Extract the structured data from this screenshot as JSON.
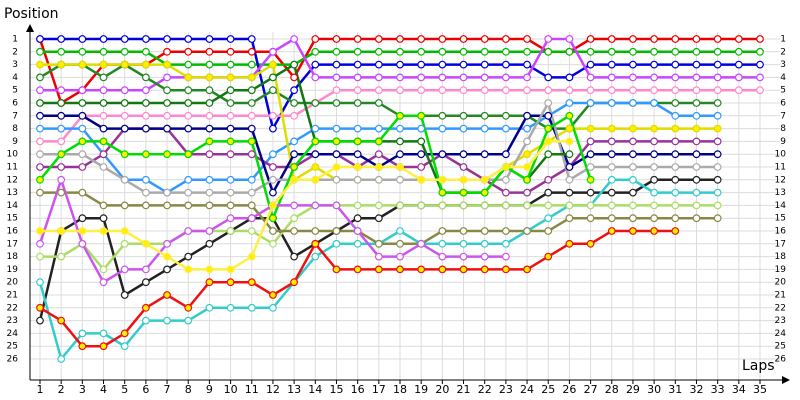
{
  "chart_data": {
    "type": "line",
    "y_title": "Position",
    "x_title": "Laps",
    "y_inverted": true,
    "grid": true,
    "xlim": [
      1,
      35
    ],
    "ylim": [
      1,
      26
    ],
    "xticks": [
      1,
      2,
      3,
      4,
      5,
      6,
      7,
      8,
      9,
      10,
      11,
      12,
      13,
      14,
      15,
      16,
      17,
      18,
      19,
      20,
      21,
      22,
      23,
      24,
      25,
      26,
      27,
      28,
      29,
      30,
      31,
      32,
      33,
      34,
      35
    ],
    "yticks": [
      1,
      2,
      3,
      4,
      5,
      6,
      7,
      8,
      9,
      10,
      11,
      12,
      13,
      14,
      15,
      16,
      17,
      18,
      19,
      20,
      21,
      22,
      23,
      24,
      25,
      26
    ],
    "x": [
      1,
      2,
      3,
      4,
      5,
      6,
      7,
      8,
      9,
      10,
      11,
      12,
      13,
      14,
      15,
      16,
      17,
      18,
      19,
      20,
      21,
      22,
      23,
      24,
      25,
      26,
      27,
      28,
      29,
      30,
      31,
      32,
      33,
      34,
      35
    ],
    "series": [
      {
        "color": "#ee0000",
        "values": [
          1,
          6,
          5,
          3,
          3,
          3,
          2,
          2,
          2,
          2,
          2,
          2,
          4,
          1,
          1,
          1,
          1,
          1,
          1,
          1,
          1,
          1,
          1,
          1,
          2,
          2,
          1,
          1,
          1,
          1,
          1,
          1,
          1,
          1,
          1
        ]
      },
      {
        "color": "#00bb00",
        "values": [
          2,
          2,
          2,
          2,
          2,
          2,
          3,
          3,
          3,
          3,
          3,
          3,
          3,
          2,
          2,
          2,
          2,
          2,
          2,
          2,
          2,
          2,
          2,
          2,
          2,
          2,
          2,
          2,
          2,
          2,
          2,
          2,
          2,
          2,
          2
        ]
      },
      {
        "color": "#0000dd",
        "values": [
          1,
          1,
          1,
          1,
          1,
          1,
          1,
          1,
          1,
          1,
          1,
          8,
          5,
          3,
          3,
          3,
          3,
          3,
          3,
          3,
          3,
          3,
          3,
          3,
          4,
          4,
          3,
          3,
          3,
          3,
          3,
          3,
          3,
          3,
          3
        ]
      },
      {
        "color": "#cc44ff",
        "values": [
          5,
          5,
          5,
          5,
          5,
          5,
          4,
          4,
          4,
          4,
          4,
          2,
          1,
          4,
          4,
          4,
          4,
          4,
          4,
          4,
          4,
          4,
          4,
          4,
          1,
          1,
          4,
          4,
          4,
          4,
          4,
          4,
          4,
          4,
          4
        ]
      },
      {
        "color": "#ff88cc",
        "values": [
          9,
          9,
          7,
          7,
          7,
          7,
          7,
          7,
          7,
          7,
          7,
          7,
          7,
          6,
          5,
          5,
          5,
          5,
          5,
          5,
          5,
          5,
          5,
          5,
          5,
          5,
          5,
          5,
          5,
          5,
          5,
          5,
          5,
          5,
          5
        ]
      },
      {
        "color": "#228822",
        "values": [
          4,
          3,
          3,
          4,
          3,
          4,
          5,
          5,
          5,
          6,
          6,
          5,
          6,
          6,
          6,
          6,
          6,
          7,
          7,
          7,
          7,
          7,
          7,
          7,
          8,
          8,
          6,
          6,
          6,
          6,
          6,
          6,
          6,
          null,
          null
        ]
      },
      {
        "color": "#3399ff",
        "values": [
          8,
          8,
          8,
          10,
          12,
          12,
          13,
          12,
          12,
          12,
          12,
          10,
          9,
          8,
          8,
          8,
          8,
          8,
          8,
          8,
          8,
          8,
          8,
          8,
          7,
          6,
          6,
          6,
          6,
          6,
          7,
          7,
          7,
          null,
          null
        ]
      },
      {
        "color": "#dddd00",
        "marker_fill": "#ffee00",
        "values": [
          3,
          3,
          3,
          3,
          3,
          3,
          3,
          4,
          4,
          4,
          4,
          3,
          12,
          11,
          12,
          12,
          12,
          12,
          12,
          12,
          12,
          12,
          11,
          10,
          9,
          8,
          8,
          8,
          8,
          8,
          8,
          8,
          8,
          null,
          null
        ]
      },
      {
        "color": "#993399",
        "values": [
          11,
          11,
          11,
          10,
          8,
          8,
          8,
          10,
          10,
          10,
          10,
          11,
          11,
          10,
          10,
          11,
          10,
          11,
          11,
          10,
          11,
          12,
          13,
          13,
          12,
          11,
          9,
          9,
          9,
          9,
          9,
          9,
          9,
          null,
          null
        ]
      },
      {
        "color": "#000088",
        "values": [
          7,
          7,
          7,
          8,
          8,
          8,
          8,
          8,
          8,
          8,
          8,
          13,
          10,
          10,
          10,
          10,
          11,
          10,
          10,
          10,
          10,
          10,
          10,
          7,
          7,
          11,
          10,
          10,
          10,
          10,
          10,
          10,
          10,
          null,
          null
        ]
      },
      {
        "color": "#aaaaaa",
        "values": [
          10,
          10,
          10,
          11,
          12,
          13,
          13,
          13,
          13,
          13,
          13,
          12,
          12,
          12,
          12,
          12,
          12,
          12,
          12,
          12,
          12,
          12,
          12,
          9,
          6,
          12,
          11,
          11,
          11,
          11,
          11,
          11,
          11,
          null,
          null
        ]
      },
      {
        "color": "#222222",
        "values": [
          23,
          16,
          15,
          15,
          21,
          20,
          19,
          18,
          17,
          16,
          15,
          15,
          18,
          17,
          16,
          15,
          15,
          14,
          14,
          14,
          14,
          14,
          14,
          14,
          13,
          13,
          13,
          13,
          13,
          12,
          12,
          12,
          12,
          null,
          null
        ]
      },
      {
        "color": "#33cccc",
        "values": [
          20,
          26,
          24,
          24,
          25,
          23,
          23,
          23,
          22,
          22,
          22,
          22,
          20,
          18,
          17,
          17,
          17,
          16,
          17,
          17,
          17,
          17,
          17,
          16,
          15,
          14,
          14,
          12,
          12,
          13,
          13,
          13,
          13,
          null,
          null
        ]
      },
      {
        "color": "#aadd66",
        "values": [
          18,
          18,
          17,
          19,
          17,
          17,
          17,
          16,
          16,
          16,
          16,
          17,
          15,
          14,
          14,
          14,
          14,
          14,
          14,
          14,
          14,
          14,
          14,
          14,
          14,
          14,
          14,
          14,
          14,
          14,
          14,
          14,
          14,
          null,
          null
        ]
      },
      {
        "color": "#888844",
        "values": [
          13,
          13,
          13,
          14,
          14,
          14,
          14,
          14,
          14,
          14,
          14,
          16,
          16,
          16,
          16,
          16,
          17,
          17,
          17,
          16,
          16,
          16,
          16,
          16,
          16,
          15,
          15,
          15,
          15,
          15,
          15,
          15,
          15,
          null,
          null
        ]
      },
      {
        "color": "#ee1111",
        "marker_fill": "#ffee00",
        "values": [
          22,
          23,
          25,
          25,
          24,
          22,
          21,
          22,
          20,
          20,
          20,
          21,
          20,
          17,
          19,
          19,
          19,
          19,
          19,
          19,
          19,
          19,
          19,
          19,
          18,
          17,
          17,
          16,
          16,
          16,
          16,
          null,
          null,
          null,
          null
        ]
      },
      {
        "color": "#117711",
        "values": [
          6,
          6,
          6,
          6,
          6,
          6,
          6,
          6,
          6,
          5,
          5,
          4,
          3,
          9,
          9,
          9,
          9,
          9,
          9,
          13,
          13,
          13,
          11,
          12,
          10,
          10,
          null,
          null,
          null,
          null,
          null,
          null,
          null,
          null,
          null
        ]
      },
      {
        "color": "#00dd00",
        "marker_fill": "#ffee00",
        "values": [
          12,
          10,
          9,
          9,
          10,
          10,
          10,
          10,
          9,
          9,
          9,
          15,
          11,
          9,
          9,
          9,
          9,
          7,
          7,
          13,
          13,
          13,
          11,
          12,
          8,
          7,
          12,
          null,
          null,
          null,
          null,
          null,
          null,
          null,
          null
        ]
      },
      {
        "color": "#cc55ee",
        "values": [
          17,
          12,
          17,
          20,
          19,
          19,
          17,
          16,
          16,
          15,
          15,
          14,
          14,
          14,
          14,
          16,
          18,
          18,
          17,
          18,
          18,
          18,
          18,
          null,
          null,
          null,
          null,
          null,
          null,
          null,
          null,
          null,
          null,
          null,
          null
        ]
      },
      {
        "color": "#ffee44",
        "marker_fill": "#ffee00",
        "values": [
          16,
          16,
          16,
          16,
          16,
          17,
          18,
          19,
          19,
          19,
          18,
          14,
          12,
          12,
          11,
          11,
          11,
          11,
          12,
          12,
          12,
          12,
          11,
          11,
          9,
          9,
          null,
          null,
          null,
          null,
          null,
          null,
          null,
          null,
          null
        ]
      }
    ]
  }
}
